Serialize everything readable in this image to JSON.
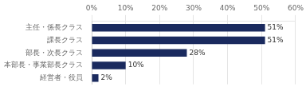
{
  "chart_data": {
    "type": "bar",
    "orientation": "horizontal",
    "categories": [
      "経営者・役員",
      "本部長・事業部長クラス",
      "部長・次長クラス",
      "課長クラス",
      "主任・係長クラス"
    ],
    "values": [
      2,
      10,
      28,
      51,
      51
    ],
    "value_labels": [
      "2%",
      "10%",
      "28%",
      "51%",
      "51%"
    ],
    "color": "#1a2a5e",
    "xlim": [
      0,
      60
    ],
    "xticks": [
      {
        "value": 0,
        "label": "0%"
      },
      {
        "value": 10,
        "label": "10%"
      },
      {
        "value": 20,
        "label": "20%"
      },
      {
        "value": 30,
        "label": "30%"
      },
      {
        "value": 40,
        "label": "40%"
      },
      {
        "value": 50,
        "label": "50%"
      },
      {
        "value": 60,
        "label": "60%"
      }
    ],
    "grid": true,
    "data_labels": true
  }
}
